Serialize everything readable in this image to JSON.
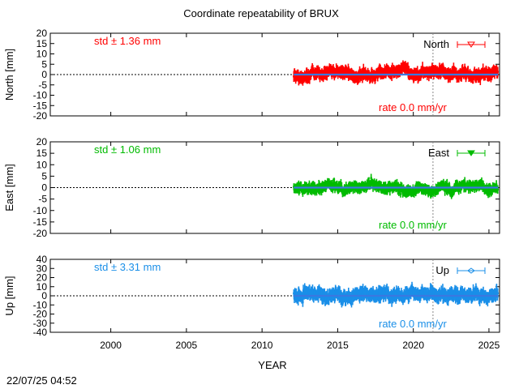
{
  "title": "Coordinate repeatability of BRUX",
  "xlabel": "YEAR",
  "timestamp": "22/07/25 04:52",
  "chart_data": [
    {
      "type": "scatter",
      "component": "North",
      "ylabel": "North [mm]",
      "legend": "North",
      "std_label": "std ± 1.36 mm",
      "rate_label": "rate  0.0 mm/yr",
      "color": "#ff0000",
      "trend_color": "#3a78e0",
      "xlim": [
        1996,
        2025.7
      ],
      "ylim": [
        -20,
        20
      ],
      "yticks": [
        -20,
        -15,
        -10,
        -5,
        0,
        5,
        10,
        15,
        20
      ],
      "data_start": 2012.1,
      "data_end": 2025.6,
      "scatter_amplitude": 1.36,
      "rate": 0.0,
      "marker_line": 2021.3,
      "legend_position": "top-right",
      "grid": false
    },
    {
      "type": "scatter",
      "component": "East",
      "ylabel": "East [mm]",
      "legend": "East",
      "std_label": "std ± 1.06 mm",
      "rate_label": "rate  0.0 mm/yr",
      "color": "#00bb00",
      "trend_color": "#3a78e0",
      "xlim": [
        1996,
        2025.7
      ],
      "ylim": [
        -20,
        20
      ],
      "yticks": [
        -20,
        -15,
        -10,
        -5,
        0,
        5,
        10,
        15,
        20
      ],
      "data_start": 2012.1,
      "data_end": 2025.6,
      "scatter_amplitude": 1.06,
      "rate": 0.0,
      "marker_line": 2021.3,
      "legend_position": "top-right",
      "grid": false
    },
    {
      "type": "scatter",
      "component": "Up",
      "ylabel": "Up [mm]",
      "legend": "Up",
      "std_label": "std ± 3.31 mm",
      "rate_label": "rate  0.0 mm/yr",
      "color": "#1a8fe8",
      "trend_color": "#3a78e0",
      "xlim": [
        1996,
        2025.7
      ],
      "ylim": [
        -40,
        40
      ],
      "yticks": [
        -40,
        -30,
        -20,
        -10,
        0,
        10,
        20,
        30,
        40
      ],
      "data_start": 2012.1,
      "data_end": 2025.6,
      "scatter_amplitude": 3.31,
      "rate": 0.0,
      "marker_line": 2021.3,
      "legend_position": "top-right",
      "grid": false
    }
  ],
  "xticks": [
    2000,
    2005,
    2010,
    2015,
    2020,
    2025
  ]
}
